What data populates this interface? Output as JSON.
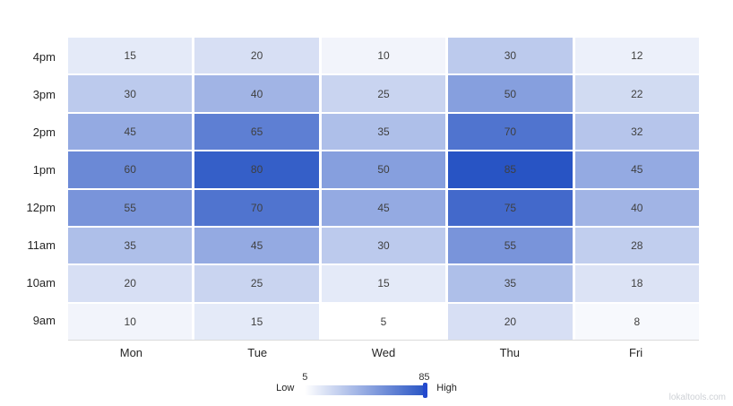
{
  "chart_data": {
    "type": "heatmap",
    "x_categories": [
      "Mon",
      "Tue",
      "Wed",
      "Thu",
      "Fri"
    ],
    "y_categories": [
      "4pm",
      "3pm",
      "2pm",
      "1pm",
      "12pm",
      "11am",
      "10am",
      "9am"
    ],
    "series": [
      [
        15,
        20,
        10,
        30,
        12
      ],
      [
        30,
        40,
        25,
        50,
        22
      ],
      [
        45,
        65,
        35,
        70,
        32
      ],
      [
        60,
        80,
        50,
        85,
        45
      ],
      [
        55,
        70,
        45,
        75,
        40
      ],
      [
        35,
        45,
        30,
        55,
        28
      ],
      [
        20,
        25,
        15,
        35,
        18
      ],
      [
        10,
        15,
        5,
        20,
        8
      ]
    ],
    "value_domain": [
      5,
      85
    ],
    "title": "",
    "xlabel": "",
    "ylabel": "",
    "grid": false,
    "legend_position": "bottom-center"
  },
  "legend": {
    "low_label": "Low",
    "high_label": "High",
    "min_value": "5",
    "max_value": "85"
  },
  "colors": {
    "scale_min": "#ffffff",
    "scale_max": "#2854c4",
    "legend_marker": "#2349ce",
    "cell_text": "#3f3f3f",
    "axis_text": "#262626",
    "axis_line": "#dbdbdb"
  },
  "watermark": "lokaltools.com"
}
